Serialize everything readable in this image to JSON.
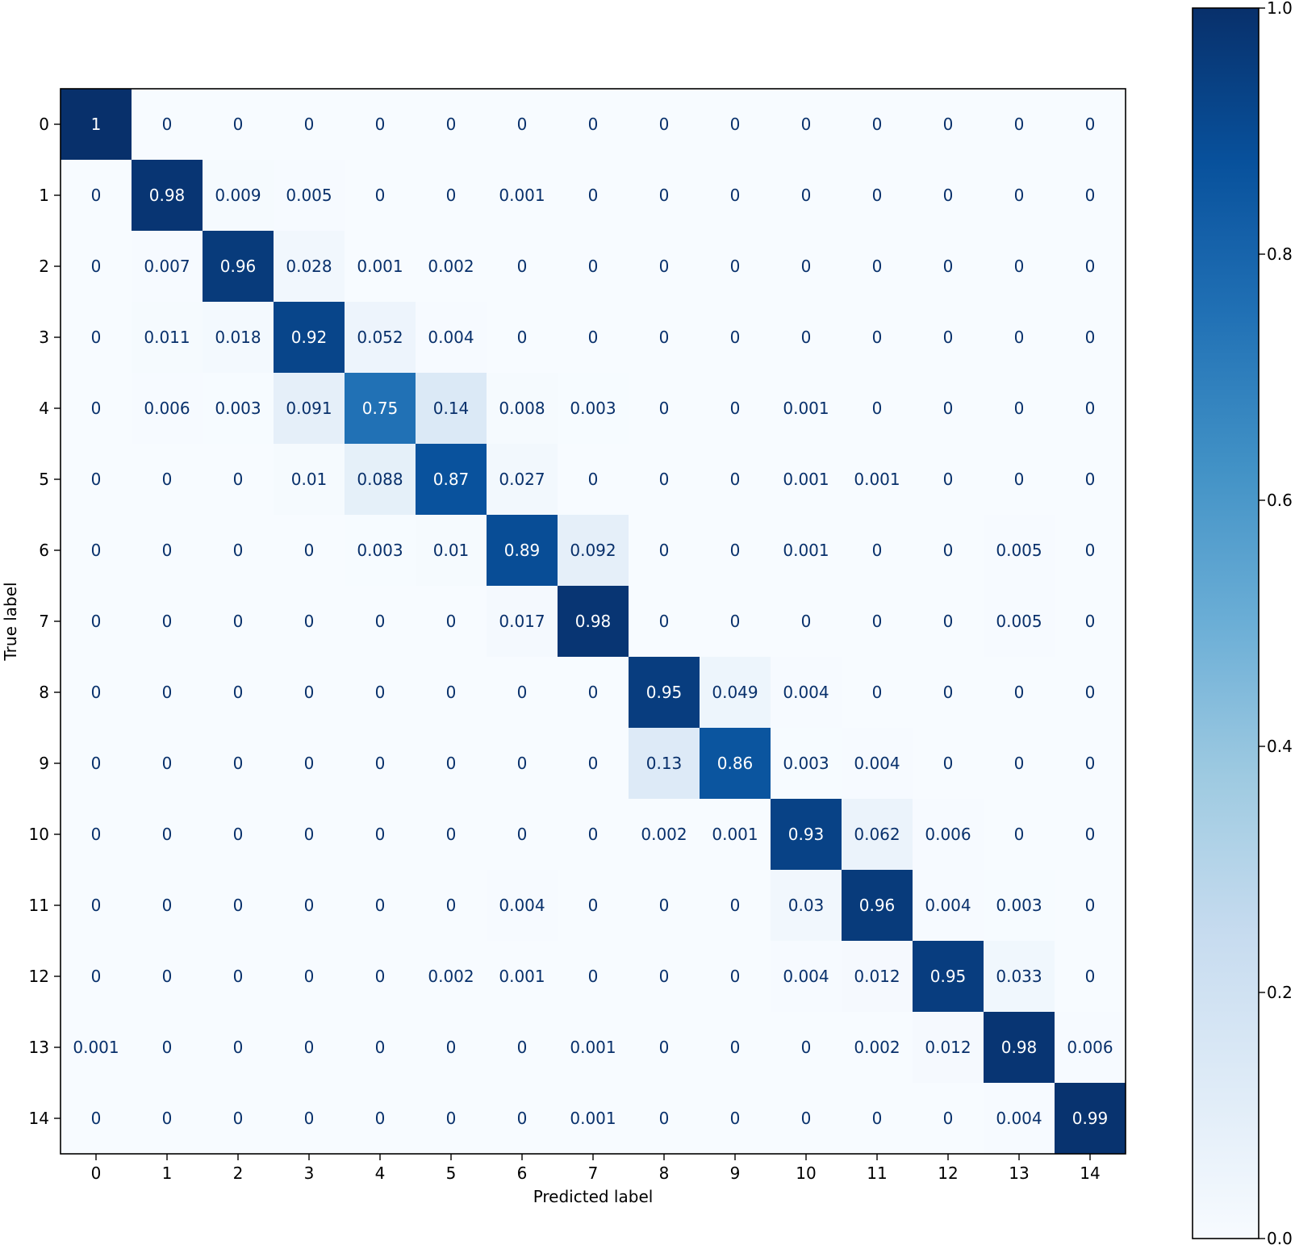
{
  "chart_data": {
    "type": "heatmap",
    "title": "",
    "xlabel": "Predicted label",
    "ylabel": "True label",
    "x_tick_labels": [
      "0",
      "1",
      "2",
      "3",
      "4",
      "5",
      "6",
      "7",
      "8",
      "9",
      "10",
      "11",
      "12",
      "13",
      "14"
    ],
    "y_tick_labels": [
      "0",
      "1",
      "2",
      "3",
      "4",
      "5",
      "6",
      "7",
      "8",
      "9",
      "10",
      "11",
      "12",
      "13",
      "14"
    ],
    "cell_labels": [
      [
        "1",
        "0",
        "0",
        "0",
        "0",
        "0",
        "0",
        "0",
        "0",
        "0",
        "0",
        "0",
        "0",
        "0",
        "0"
      ],
      [
        "0",
        "0.98",
        "0.009",
        "0.005",
        "0",
        "0",
        "0.001",
        "0",
        "0",
        "0",
        "0",
        "0",
        "0",
        "0",
        "0"
      ],
      [
        "0",
        "0.007",
        "0.96",
        "0.028",
        "0.001",
        "0.002",
        "0",
        "0",
        "0",
        "0",
        "0",
        "0",
        "0",
        "0",
        "0"
      ],
      [
        "0",
        "0.011",
        "0.018",
        "0.92",
        "0.052",
        "0.004",
        "0",
        "0",
        "0",
        "0",
        "0",
        "0",
        "0",
        "0",
        "0"
      ],
      [
        "0",
        "0.006",
        "0.003",
        "0.091",
        "0.75",
        "0.14",
        "0.008",
        "0.003",
        "0",
        "0",
        "0.001",
        "0",
        "0",
        "0",
        "0"
      ],
      [
        "0",
        "0",
        "0",
        "0.01",
        "0.088",
        "0.87",
        "0.027",
        "0",
        "0",
        "0",
        "0.001",
        "0.001",
        "0",
        "0",
        "0"
      ],
      [
        "0",
        "0",
        "0",
        "0",
        "0.003",
        "0.01",
        "0.89",
        "0.092",
        "0",
        "0",
        "0.001",
        "0",
        "0",
        "0.005",
        "0"
      ],
      [
        "0",
        "0",
        "0",
        "0",
        "0",
        "0",
        "0.017",
        "0.98",
        "0",
        "0",
        "0",
        "0",
        "0",
        "0.005",
        "0"
      ],
      [
        "0",
        "0",
        "0",
        "0",
        "0",
        "0",
        "0",
        "0",
        "0.95",
        "0.049",
        "0.004",
        "0",
        "0",
        "0",
        "0"
      ],
      [
        "0",
        "0",
        "0",
        "0",
        "0",
        "0",
        "0",
        "0",
        "0.13",
        "0.86",
        "0.003",
        "0.004",
        "0",
        "0",
        "0"
      ],
      [
        "0",
        "0",
        "0",
        "0",
        "0",
        "0",
        "0",
        "0",
        "0.002",
        "0.001",
        "0.93",
        "0.062",
        "0.006",
        "0",
        "0"
      ],
      [
        "0",
        "0",
        "0",
        "0",
        "0",
        "0",
        "0.004",
        "0",
        "0",
        "0",
        "0.03",
        "0.96",
        "0.004",
        "0.003",
        "0"
      ],
      [
        "0",
        "0",
        "0",
        "0",
        "0",
        "0.002",
        "0.001",
        "0",
        "0",
        "0",
        "0.004",
        "0.012",
        "0.95",
        "0.033",
        "0"
      ],
      [
        "0.001",
        "0",
        "0",
        "0",
        "0",
        "0",
        "0",
        "0.001",
        "0",
        "0",
        "0",
        "0.002",
        "0.012",
        "0.98",
        "0.006"
      ],
      [
        "0",
        "0",
        "0",
        "0",
        "0",
        "0",
        "0",
        "0.001",
        "0",
        "0",
        "0",
        "0",
        "0",
        "0.004",
        "0.99"
      ]
    ],
    "colorbar": {
      "range": [
        0.0,
        1.0
      ],
      "tick_labels": [
        "0.0",
        "0.2",
        "0.4",
        "0.6",
        "0.8",
        "1.0"
      ]
    },
    "colormap": "Blues",
    "colors": {
      "low": "#f7fbff",
      "high": "#08306b"
    },
    "grid": false,
    "legend": "colorbar-right"
  }
}
